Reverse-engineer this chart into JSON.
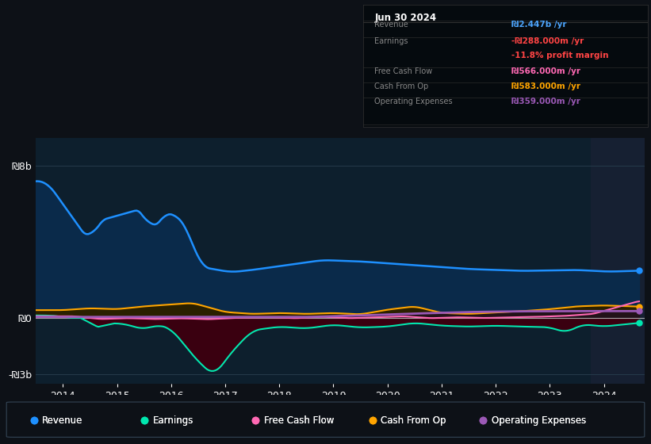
{
  "bg_color": "#0d1117",
  "plot_bg_color": "#0d1f2d",
  "highlight_bg_color": "#162032",
  "grid_color": "#253a4a",
  "zero_line_color": "#cccccc",
  "title_date": "Jun 30 2024",
  "ylim_min": -3500000000.0,
  "ylim_max": 9500000000.0,
  "ytick_vals": [
    -3000000000.0,
    0,
    8000000000.0
  ],
  "ytick_labels": [
    "-₪3b",
    "₪0",
    "₪8b"
  ],
  "xlim_start": 2013.5,
  "xlim_end": 2024.75,
  "xtick_years": [
    2014,
    2015,
    2016,
    2017,
    2018,
    2019,
    2020,
    2021,
    2022,
    2023,
    2024
  ],
  "revenue_color": "#1e90ff",
  "revenue_fill_color": "#0a2a4a",
  "earnings_color": "#00e8b0",
  "earnings_fill_neg_color": "#3a0010",
  "cashflow_color": "#ff69b4",
  "cashfromop_color": "#ffa500",
  "cashfromop_fill_color": "#2a2000",
  "opex_color": "#9b59b6",
  "opex_fill_color": "#1e0a2a",
  "highlight_start": 2023.75,
  "highlight_end": 2024.75,
  "legend_items": [
    {
      "label": "Revenue",
      "color": "#1e90ff"
    },
    {
      "label": "Earnings",
      "color": "#00e8b0"
    },
    {
      "label": "Free Cash Flow",
      "color": "#ff69b4"
    },
    {
      "label": "Cash From Op",
      "color": "#ffa500"
    },
    {
      "label": "Operating Expenses",
      "color": "#9b59b6"
    }
  ],
  "table_revenue_val": "₪2.447b /yr",
  "table_revenue_color": "#4da6ff",
  "table_earnings_val": "-₪288.000m /yr",
  "table_earnings_color": "#ff4444",
  "table_margin_val": "-11.8% profit margin",
  "table_margin_color": "#ff4444",
  "table_fcf_val": "₪566.000m /yr",
  "table_fcf_color": "#ff69b4",
  "table_cashop_val": "₪583.000m /yr",
  "table_cashop_color": "#ffa500",
  "table_opex_val": "₪359.000m /yr",
  "table_opex_color": "#9b59b6"
}
